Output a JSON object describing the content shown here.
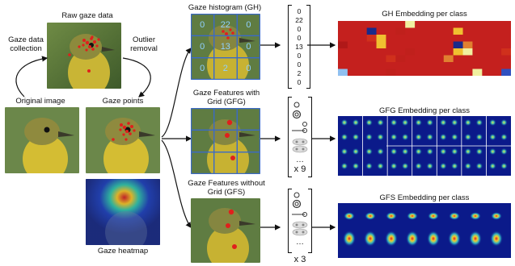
{
  "labels": {
    "raw_gaze_data": "Raw gaze data",
    "gaze_data_collection": "Gaze data collection",
    "outlier_removal": "Outlier removal",
    "original_image": "Original image",
    "gaze_points": "Gaze points",
    "gaze_heatmap": "Gaze heatmap",
    "gaze_histogram": "Gaze histogram (GH)",
    "gfg": "Gaze Features with Grid (GFG)",
    "gfs": "Gaze Features without Grid (GFS)",
    "gh_embedding": "GH Embedding per class",
    "gfg_embedding": "GFG Embedding per class",
    "gfs_embedding": "GFS Embedding per class",
    "x9": "x 9",
    "x3": "x 3",
    "ellipsis": "…"
  },
  "histogram_grid": [
    "0",
    "22",
    "0",
    "0",
    "13",
    "0",
    "0",
    "2",
    "0"
  ],
  "gh_vector": [
    "0",
    "22",
    "0",
    "0",
    "13",
    "0",
    "0",
    "2",
    "0"
  ],
  "colors": {
    "bird_yellow": "#d9c23a",
    "bird_olive": "#8a8a3a",
    "bg_green": "#5d7a3a",
    "gaze_red": "#e0201c",
    "grid_blue": "#3a6ac8",
    "heat_dark": "#0b1a8a"
  },
  "icons": [
    "network-icon",
    "stacked-circles-icon"
  ]
}
